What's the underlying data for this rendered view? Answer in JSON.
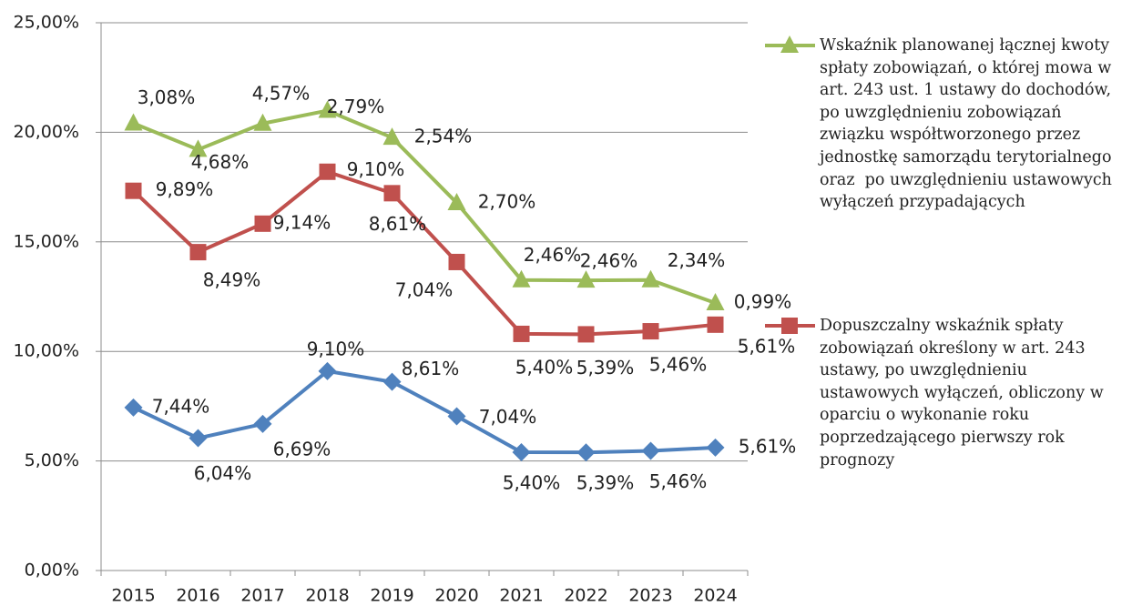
{
  "chart_data": {
    "type": "line",
    "stacked": true,
    "categories": [
      "2015",
      "2016",
      "2017",
      "2018",
      "2019",
      "2020",
      "2021",
      "2022",
      "2023",
      "2024"
    ],
    "ylim": [
      0,
      25
    ],
    "yticks": [
      {
        "value": 0,
        "label": "0,00%"
      },
      {
        "value": 5,
        "label": "5,00%"
      },
      {
        "value": 10,
        "label": "10,00%"
      },
      {
        "value": 15,
        "label": "15,00%"
      },
      {
        "value": 20,
        "label": "20,00%"
      },
      {
        "value": 25,
        "label": "25,00%"
      }
    ],
    "grid": true,
    "legend": "right",
    "series": [
      {
        "color": "#4f81bd",
        "marker": "diamond",
        "values": [
          7.44,
          6.04,
          6.69,
          9.1,
          8.61,
          7.04,
          5.4,
          5.39,
          5.46,
          5.61
        ],
        "value_labels": [
          "7,44%",
          "6,04%",
          "6,69%",
          "9,10%",
          "8,61%",
          "7,04%",
          "5,40%",
          "5,39%",
          "5,46%",
          "5,61%"
        ]
      },
      {
        "name": "Dopuszczalny wskaźnik spłaty zobowiązań określony w art. 243 ustawy, po uwzględnieniu ustawowych wyłączeń, obliczony w oparciu o wykonanie roku poprzedzającego pierwszy rok prognozy",
        "color": "#c0504d",
        "marker": "square",
        "values": [
          9.89,
          8.49,
          9.14,
          9.1,
          8.61,
          7.04,
          5.4,
          5.39,
          5.46,
          5.61
        ],
        "value_labels": [
          "9,89%",
          "8,49%",
          "9,14%",
          "9,10%",
          "8,61%",
          "7,04%",
          "5,40%",
          "5,39%",
          "5,46%",
          "5,61%"
        ]
      },
      {
        "name": "Wskaźnik planowanej łącznej kwoty spłaty zobowiązań, o której mowa w art. 243 ust. 1 ustawy do dochodów, po uwzględnieniu zobowiązań związku współtworzonego przez jednostkę samorządu terytorialnego oraz  po uwzględnieniu ustawowych wyłączeń przypadających",
        "color": "#9bbb59",
        "marker": "triangle",
        "values": [
          3.08,
          4.68,
          4.57,
          2.79,
          2.54,
          2.7,
          2.46,
          2.46,
          2.34,
          0.99
        ],
        "value_labels": [
          "3,08%",
          "4,68%",
          "4,57%",
          "2,79%",
          "2,54%",
          "2,70%",
          "2,46%",
          "2,46%",
          "2,34%",
          "0,99%"
        ]
      }
    ]
  }
}
